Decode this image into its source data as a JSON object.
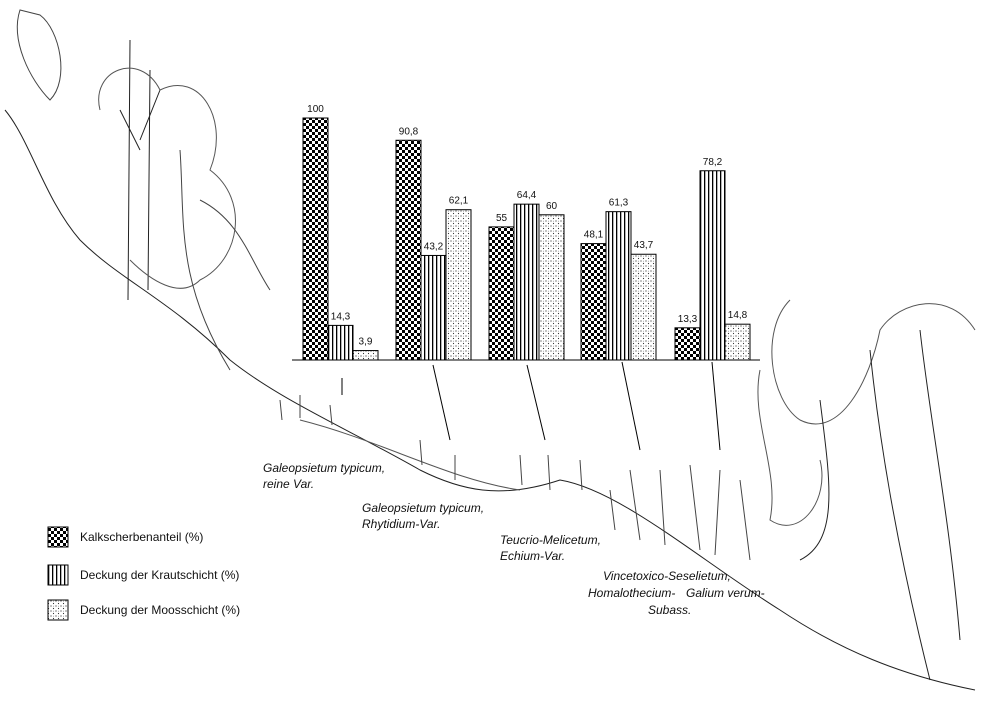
{
  "chart_data": {
    "type": "bar",
    "categories": [
      [
        "Galeopsietum typicum,",
        "reine Var."
      ],
      [
        "Galeopsietum typicum,",
        "Rhytidium-Var."
      ],
      [
        "Teucrio-Melicetum,",
        "Echium-Var."
      ],
      [
        "Homalothecium-"
      ],
      [
        "Galium verum-"
      ]
    ],
    "annotations": [
      "Vincetoxico-Seselietum,",
      "Subass."
    ],
    "series": [
      {
        "name": "Kalkscherbenanteil (%)",
        "pattern": "checker",
        "color": "#000000",
        "values": [
          100,
          90.8,
          55,
          48.1,
          13.3
        ],
        "value_labels": [
          "100",
          "90,8",
          "55",
          "48,1",
          "13,3"
        ]
      },
      {
        "name": "Deckung der Krautschicht (%)",
        "pattern": "vertical-lines",
        "color": "#000000",
        "values": [
          14.3,
          43.2,
          64.4,
          61.3,
          78.2
        ],
        "value_labels": [
          "14,3",
          "43,2",
          "64,4",
          "61,3",
          "78,2"
        ]
      },
      {
        "name": "Deckung der Moosschicht (%)",
        "pattern": "stipple",
        "color": "#000000",
        "values": [
          3.9,
          62.1,
          60,
          43.7,
          14.8
        ],
        "value_labels": [
          "3,9",
          "62,1",
          "60",
          "43,7",
          "14,8"
        ]
      }
    ],
    "ylim": [
      0,
      100
    ],
    "grid": false
  }
}
